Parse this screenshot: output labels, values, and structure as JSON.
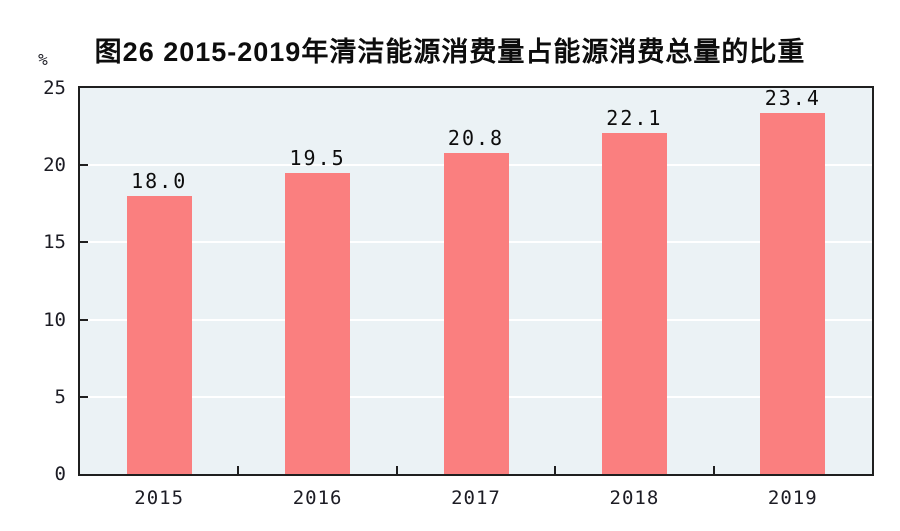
{
  "chart_data": {
    "type": "bar",
    "title": "图26  2015-2019年清洁能源消费量占能源消费总量的比重",
    "unit_label": "%",
    "categories": [
      "2015",
      "2016",
      "2017",
      "2018",
      "2019"
    ],
    "values": [
      18.0,
      19.5,
      20.8,
      22.1,
      23.4
    ],
    "value_labels": [
      "18.0",
      "19.5",
      "20.8",
      "22.1",
      "23.4"
    ],
    "ylim": [
      0,
      25
    ],
    "yticks": [
      0,
      5,
      10,
      15,
      20,
      25
    ],
    "grid": true,
    "legend_position": "none",
    "colors": {
      "bar": "#fa7f7f",
      "plot_background": "#ebf2f5",
      "gridline": "#ffffff",
      "axis": "#1f1f1f",
      "tick_text": "#1c1c24",
      "value_text": "#0d0d0d",
      "title_text": "#0d0d0d"
    }
  }
}
